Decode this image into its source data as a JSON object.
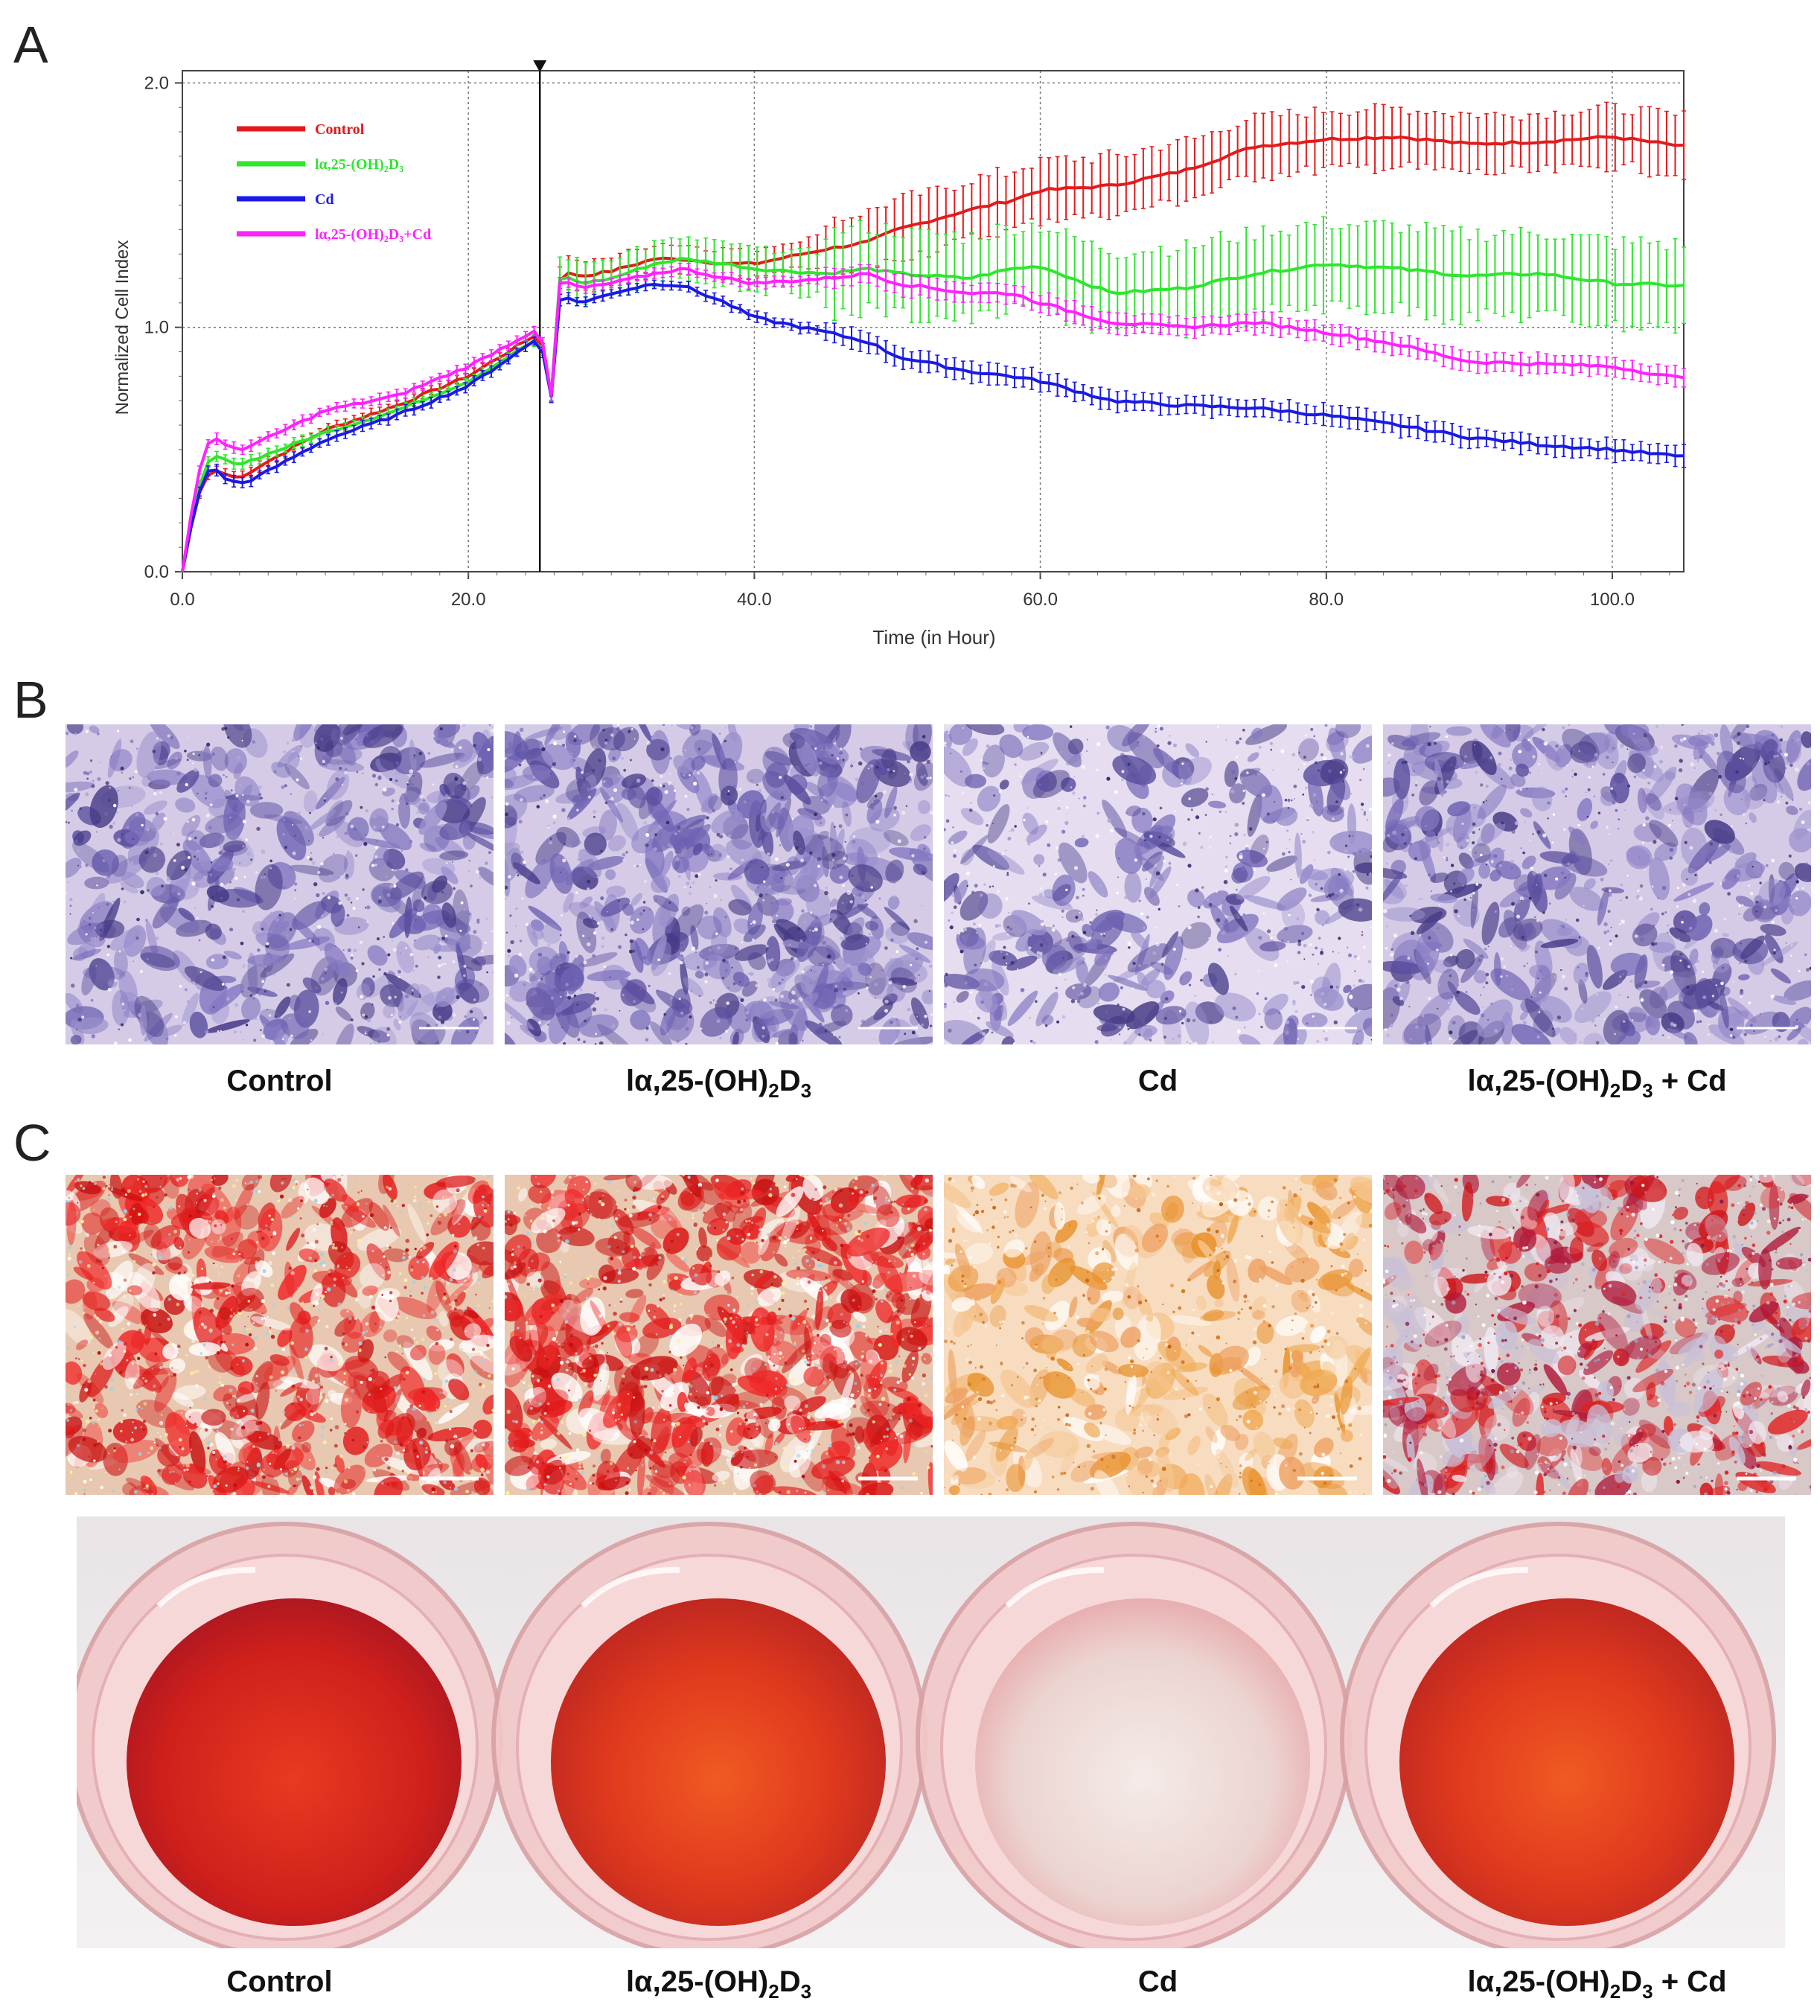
{
  "panels": {
    "a": "A",
    "b": "B",
    "c": "C"
  },
  "chart_data": {
    "type": "line",
    "xlabel": "Time (in Hour)",
    "ylabel": "Normalized Cell Index",
    "xlim": [
      0,
      105
    ],
    "ylim": [
      0,
      2.05
    ],
    "xticks": [
      "0.0",
      "20.0",
      "40.0",
      "60.0",
      "80.0",
      "100.0"
    ],
    "yticks": [
      "0.0",
      "1.0",
      "2.0"
    ],
    "marker_time": 25,
    "legend_position": "top-left",
    "series": [
      {
        "name": "Control",
        "color": "#e41a1c",
        "x": [
          0,
          1,
          2,
          3,
          4,
          5,
          10,
          15,
          20,
          25,
          25.8,
          26,
          27,
          28,
          30,
          33,
          35,
          38,
          40,
          45,
          48,
          50,
          55,
          58,
          60,
          65,
          70,
          75,
          80,
          85,
          90,
          95,
          100,
          105
        ],
        "y": [
          0,
          0.3,
          0.42,
          0.4,
          0.38,
          0.42,
          0.58,
          0.68,
          0.8,
          0.98,
          0.72,
          1.18,
          1.22,
          1.21,
          1.23,
          1.28,
          1.28,
          1.26,
          1.26,
          1.32,
          1.35,
          1.4,
          1.48,
          1.52,
          1.56,
          1.58,
          1.64,
          1.74,
          1.77,
          1.78,
          1.75,
          1.76,
          1.78,
          1.74
        ],
        "err": 0.12
      },
      {
        "name": "lα,25-(OH)₂D₃",
        "color": "#2ee62e",
        "x": [
          0,
          1,
          2,
          3,
          4,
          5,
          10,
          15,
          20,
          25,
          25.8,
          26,
          27,
          28,
          30,
          33,
          35,
          38,
          40,
          45,
          48,
          50,
          55,
          58,
          60,
          65,
          70,
          75,
          80,
          85,
          90,
          95,
          100,
          105
        ],
        "y": [
          0,
          0.32,
          0.48,
          0.46,
          0.44,
          0.46,
          0.57,
          0.66,
          0.78,
          0.96,
          0.72,
          1.2,
          1.2,
          1.18,
          1.2,
          1.26,
          1.28,
          1.26,
          1.24,
          1.22,
          1.24,
          1.22,
          1.2,
          1.24,
          1.25,
          1.14,
          1.16,
          1.22,
          1.26,
          1.24,
          1.21,
          1.22,
          1.18,
          1.17
        ],
        "err": 0.17
      },
      {
        "name": "Cd",
        "color": "#1a1ae6",
        "x": [
          0,
          1,
          2,
          3,
          4,
          5,
          10,
          15,
          20,
          25,
          25.8,
          26,
          27,
          28,
          30,
          33,
          35,
          38,
          40,
          45,
          48,
          50,
          55,
          58,
          60,
          65,
          70,
          75,
          80,
          85,
          90,
          95,
          100,
          105
        ],
        "y": [
          0,
          0.3,
          0.44,
          0.38,
          0.36,
          0.38,
          0.54,
          0.64,
          0.76,
          0.96,
          0.72,
          1.1,
          1.12,
          1.1,
          1.14,
          1.18,
          1.17,
          1.1,
          1.04,
          0.98,
          0.94,
          0.88,
          0.82,
          0.8,
          0.78,
          0.7,
          0.68,
          0.67,
          0.64,
          0.6,
          0.55,
          0.52,
          0.5,
          0.47
        ],
        "err": 0.04
      },
      {
        "name": "lα,25-(OH)₂D₃+Cd",
        "color": "#ff22ff",
        "x": [
          0,
          1,
          2,
          3,
          4,
          5,
          10,
          15,
          20,
          25,
          25.8,
          26,
          27,
          28,
          30,
          33,
          35,
          38,
          40,
          45,
          48,
          50,
          55,
          58,
          60,
          65,
          70,
          75,
          80,
          85,
          90,
          95,
          100,
          105
        ],
        "y": [
          0,
          0.38,
          0.56,
          0.52,
          0.5,
          0.52,
          0.66,
          0.72,
          0.84,
          1.0,
          0.72,
          1.18,
          1.18,
          1.16,
          1.18,
          1.22,
          1.24,
          1.2,
          1.18,
          1.2,
          1.22,
          1.18,
          1.14,
          1.14,
          1.1,
          1.02,
          1.0,
          1.02,
          0.98,
          0.93,
          0.86,
          0.85,
          0.84,
          0.79
        ],
        "err": 0.04
      }
    ]
  },
  "panel_b": {
    "captions": [
      {
        "main": "Control",
        "sub1": "",
        "mid": "",
        "sub2": "",
        "tail": ""
      },
      {
        "main": "lα,25-(OH)",
        "sub1": "2",
        "mid": "D",
        "sub2": "3",
        "tail": ""
      },
      {
        "main": "Cd",
        "sub1": "",
        "mid": "",
        "sub2": "",
        "tail": ""
      },
      {
        "main": "lα,25-(OH)",
        "sub1": "2",
        "mid": "D",
        "sub2": "3",
        "tail": " + Cd"
      }
    ]
  },
  "panel_c": {
    "captions": [
      {
        "main": "Control",
        "sub1": "",
        "mid": "",
        "sub2": "",
        "tail": ""
      },
      {
        "main": "lα,25-(OH)",
        "sub1": "2",
        "mid": "D",
        "sub2": "3",
        "tail": ""
      },
      {
        "main": "Cd",
        "sub1": "",
        "mid": "",
        "sub2": "",
        "tail": ""
      },
      {
        "main": "lα,25-(OH)",
        "sub1": "2",
        "mid": "D",
        "sub2": "3",
        "tail": " + Cd"
      }
    ]
  },
  "colors": {
    "purple": "#6a5fb0",
    "red": "#d91414",
    "orange": "#e8902a",
    "well_pink": "#f2c6c6"
  }
}
